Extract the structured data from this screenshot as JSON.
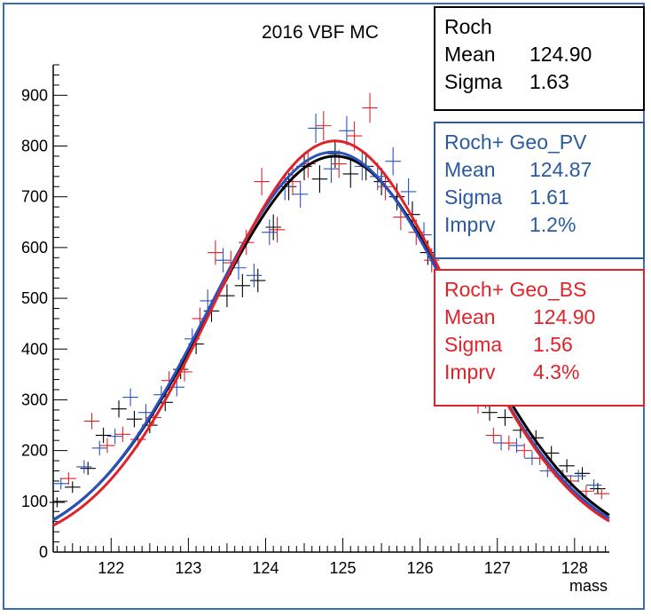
{
  "chart_data": {
    "type": "scatter",
    "title": "2016 VBF MC",
    "xlabel": "mass",
    "ylabel": "",
    "xlim": [
      121.25,
      128.45
    ],
    "ylim": [
      0,
      960
    ],
    "x_ticks": [
      122,
      123,
      124,
      125,
      126,
      127,
      128
    ],
    "y_ticks": [
      0,
      100,
      200,
      300,
      400,
      500,
      600,
      700,
      800,
      900
    ],
    "series": [
      {
        "name": "Roch",
        "color": "#000000",
        "fit": {
          "mean": 124.9,
          "sigma": 1.63,
          "amplitude": 780
        },
        "points": [
          [
            121.3,
            98
          ],
          [
            121.5,
            128
          ],
          [
            121.7,
            165
          ],
          [
            121.9,
            230
          ],
          [
            122.1,
            282
          ],
          [
            122.3,
            262
          ],
          [
            122.5,
            250
          ],
          [
            122.7,
            295
          ],
          [
            122.9,
            360
          ],
          [
            123.1,
            410
          ],
          [
            123.3,
            475
          ],
          [
            123.5,
            505
          ],
          [
            123.7,
            525
          ],
          [
            123.9,
            535
          ],
          [
            124.1,
            640
          ],
          [
            124.3,
            720
          ],
          [
            124.5,
            760
          ],
          [
            124.7,
            735
          ],
          [
            124.9,
            785
          ],
          [
            125.1,
            745
          ],
          [
            125.3,
            760
          ],
          [
            125.5,
            730
          ],
          [
            125.7,
            700
          ],
          [
            125.9,
            665
          ],
          [
            126.1,
            590
          ],
          [
            126.7,
            320
          ],
          [
            126.9,
            275
          ],
          [
            127.1,
            265
          ],
          [
            127.3,
            240
          ],
          [
            127.5,
            225
          ],
          [
            127.7,
            195
          ],
          [
            127.9,
            170
          ],
          [
            128.1,
            155
          ],
          [
            128.3,
            125
          ]
        ]
      },
      {
        "name": "Roch+ Geo_PV",
        "color": "#2a52be",
        "fit": {
          "mean": 124.87,
          "sigma": 1.61,
          "amplitude": 788,
          "imprv": "1.2%"
        },
        "points": [
          [
            121.35,
            135
          ],
          [
            121.65,
            168
          ],
          [
            121.85,
            205
          ],
          [
            122.05,
            228
          ],
          [
            122.25,
            305
          ],
          [
            122.45,
            275
          ],
          [
            122.65,
            310
          ],
          [
            122.85,
            325
          ],
          [
            123.05,
            420
          ],
          [
            123.25,
            495
          ],
          [
            123.45,
            575
          ],
          [
            123.65,
            560
          ],
          [
            123.85,
            545
          ],
          [
            124.05,
            630
          ],
          [
            124.25,
            720
          ],
          [
            124.45,
            705
          ],
          [
            124.65,
            835
          ],
          [
            124.85,
            755
          ],
          [
            125.05,
            830
          ],
          [
            125.25,
            760
          ],
          [
            125.45,
            740
          ],
          [
            125.65,
            770
          ],
          [
            125.85,
            710
          ],
          [
            126.05,
            625
          ],
          [
            126.85,
            300
          ],
          [
            127.05,
            215
          ],
          [
            127.25,
            210
          ],
          [
            127.45,
            185
          ],
          [
            127.65,
            160
          ],
          [
            127.85,
            150
          ],
          [
            128.05,
            150
          ],
          [
            128.25,
            132
          ]
        ]
      },
      {
        "name": "Roch+ Geo_BS",
        "color": "#e0232a",
        "fit": {
          "mean": 124.9,
          "sigma": 1.56,
          "amplitude": 810,
          "imprv": "4.3%"
        },
        "points": [
          [
            121.45,
            145
          ],
          [
            121.75,
            258
          ],
          [
            121.95,
            210
          ],
          [
            122.15,
            232
          ],
          [
            122.35,
            222
          ],
          [
            122.55,
            265
          ],
          [
            122.75,
            338
          ],
          [
            122.95,
            355
          ],
          [
            123.15,
            460
          ],
          [
            123.35,
            590
          ],
          [
            123.55,
            570
          ],
          [
            123.75,
            610
          ],
          [
            123.95,
            730
          ],
          [
            124.15,
            635
          ],
          [
            124.35,
            730
          ],
          [
            124.55,
            765
          ],
          [
            124.75,
            840
          ],
          [
            124.95,
            765
          ],
          [
            125.15,
            820
          ],
          [
            125.35,
            875
          ],
          [
            125.55,
            720
          ],
          [
            125.75,
            660
          ],
          [
            125.95,
            630
          ],
          [
            126.15,
            575
          ],
          [
            126.75,
            290
          ],
          [
            126.95,
            230
          ],
          [
            127.15,
            215
          ],
          [
            127.35,
            200
          ],
          [
            127.55,
            185
          ],
          [
            127.75,
            160
          ],
          [
            127.95,
            140
          ],
          [
            128.15,
            120
          ],
          [
            128.35,
            115
          ]
        ]
      }
    ]
  },
  "stats": {
    "roch": {
      "label": "Roch",
      "mean_key": "Mean",
      "mean_val": "124.90",
      "sigma_key": "Sigma",
      "sigma_val": "1.63"
    },
    "pv": {
      "label": "Roch+ Geo_PV",
      "mean_key": "Mean",
      "mean_val": "124.87",
      "sigma_key": "Sigma",
      "sigma_val": "1.61",
      "imprv_key": "Imprv",
      "imprv_val": "1.2%"
    },
    "bs": {
      "label": "Roch+ Geo_BS",
      "mean_key": "Mean",
      "mean_val": "124.90",
      "sigma_key": "Sigma",
      "sigma_val": "1.56",
      "imprv_key": "Imprv",
      "imprv_val": "4.3%"
    }
  }
}
